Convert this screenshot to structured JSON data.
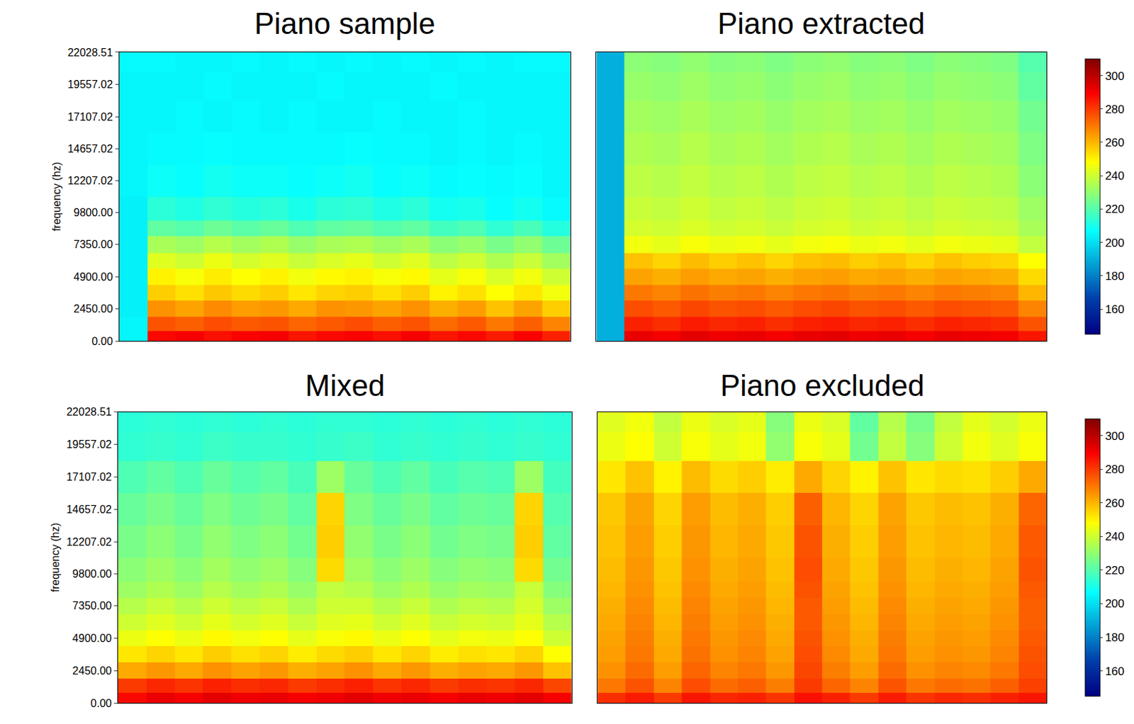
{
  "chart_data": [
    {
      "type": "heatmap",
      "title": "Piano sample",
      "y_label": "frequency (hz)",
      "tick_labels": "y",
      "y": [
        300,
        1200,
        2450,
        3700,
        4900,
        6100,
        7350,
        8600,
        9800,
        12207,
        14657,
        17107,
        19557,
        21500
      ],
      "ylim": [
        0,
        22028.51
      ],
      "yticks": [
        {
          "value": 0,
          "label": "0.00"
        },
        {
          "value": 2450,
          "label": "2450.00"
        },
        {
          "value": 4900,
          "label": "4900.00"
        },
        {
          "value": 7350,
          "label": "7350.00"
        },
        {
          "value": 9800,
          "label": "9800.00"
        },
        {
          "value": 12207.02,
          "label": "12207.02"
        },
        {
          "value": 14657.02,
          "label": "14657.02"
        },
        {
          "value": 17107.02,
          "label": "17107.02"
        },
        {
          "value": 19557.02,
          "label": "19557.02"
        },
        {
          "value": 22028.51,
          "label": "22028.51"
        }
      ],
      "zlim": [
        145,
        310
      ],
      "cells": [
        [
          205,
          288,
          290,
          287,
          289,
          290,
          286,
          288,
          289,
          287,
          290,
          286,
          288,
          285,
          289,
          284
        ],
        [
          205,
          276,
          274,
          277,
          275,
          276,
          273,
          275,
          277,
          274,
          276,
          272,
          275,
          270,
          274,
          268
        ],
        [
          204,
          266,
          263,
          267,
          264,
          265,
          262,
          266,
          265,
          263,
          266,
          261,
          264,
          258,
          263,
          256
        ],
        [
          204,
          256,
          253,
          257,
          254,
          256,
          252,
          255,
          256,
          253,
          256,
          250,
          253,
          248,
          252,
          246
        ],
        [
          204,
          250,
          247,
          251,
          248,
          250,
          246,
          249,
          250,
          247,
          249,
          244,
          247,
          242,
          246,
          240
        ],
        [
          204,
          243,
          240,
          245,
          241,
          243,
          239,
          242,
          244,
          240,
          243,
          237,
          240,
          235,
          239,
          233
        ],
        [
          204,
          234,
          232,
          236,
          233,
          235,
          231,
          234,
          235,
          232,
          234,
          229,
          231,
          226,
          230,
          224
        ],
        [
          204,
          222,
          220,
          224,
          221,
          223,
          219,
          222,
          223,
          220,
          222,
          217,
          219,
          214,
          218,
          212
        ],
        [
          204,
          213,
          211,
          214,
          212,
          213,
          210,
          213,
          214,
          211,
          213,
          209,
          210,
          207,
          209,
          206
        ],
        [
          205,
          208,
          207,
          209,
          208,
          208,
          207,
          208,
          209,
          207,
          208,
          206,
          207,
          206,
          207,
          205
        ],
        [
          205,
          206,
          206,
          207,
          206,
          206,
          206,
          206,
          207,
          206,
          206,
          205,
          206,
          205,
          206,
          205
        ],
        [
          205,
          205,
          206,
          205,
          206,
          205,
          206,
          205,
          205,
          206,
          205,
          205,
          206,
          205,
          205,
          205
        ],
        [
          205,
          205,
          205,
          206,
          205,
          205,
          205,
          206,
          205,
          205,
          205,
          206,
          205,
          205,
          205,
          205
        ],
        [
          206,
          206,
          205,
          205,
          206,
          205,
          206,
          205,
          206,
          205,
          206,
          205,
          206,
          205,
          206,
          206
        ]
      ]
    },
    {
      "type": "heatmap",
      "title": "Piano extracted",
      "tick_labels": false,
      "y": [
        300,
        1200,
        2450,
        3700,
        4900,
        6100,
        7350,
        8600,
        9800,
        12207,
        14657,
        17107,
        19557,
        21500
      ],
      "ylim": [
        0,
        22028.51
      ],
      "zlim": [
        145,
        310
      ],
      "zticks": [
        160,
        180,
        200,
        220,
        240,
        260,
        280,
        300
      ],
      "cells": [
        [
          190,
          292,
          290,
          293,
          291,
          292,
          290,
          292,
          293,
          291,
          292,
          290,
          292,
          291,
          290,
          286
        ],
        [
          190,
          284,
          282,
          285,
          283,
          284,
          282,
          284,
          285,
          283,
          284,
          282,
          284,
          283,
          282,
          276
        ],
        [
          190,
          277,
          275,
          278,
          276,
          277,
          275,
          277,
          278,
          276,
          277,
          275,
          277,
          276,
          275,
          268
        ],
        [
          190,
          270,
          268,
          271,
          269,
          270,
          268,
          270,
          271,
          269,
          270,
          268,
          270,
          269,
          268,
          260
        ],
        [
          190,
          263,
          261,
          264,
          262,
          263,
          261,
          263,
          264,
          262,
          263,
          261,
          263,
          262,
          261,
          254
        ],
        [
          190,
          258,
          255,
          259,
          256,
          258,
          255,
          258,
          259,
          256,
          258,
          255,
          258,
          256,
          255,
          248
        ],
        [
          190,
          246,
          244,
          247,
          245,
          246,
          244,
          246,
          247,
          245,
          246,
          244,
          246,
          245,
          244,
          238
        ],
        [
          190,
          241,
          240,
          242,
          240,
          241,
          239,
          241,
          242,
          240,
          241,
          239,
          241,
          240,
          239,
          234
        ],
        [
          190,
          239,
          238,
          240,
          238,
          239,
          237,
          239,
          240,
          238,
          239,
          237,
          239,
          238,
          237,
          232
        ],
        [
          190,
          237,
          236,
          238,
          236,
          237,
          235,
          237,
          238,
          236,
          237,
          235,
          237,
          236,
          235,
          229
        ],
        [
          190,
          235,
          234,
          236,
          234,
          235,
          233,
          235,
          236,
          234,
          235,
          233,
          235,
          234,
          233,
          227
        ],
        [
          190,
          233,
          232,
          234,
          232,
          233,
          231,
          233,
          234,
          232,
          233,
          231,
          233,
          232,
          231,
          225
        ],
        [
          190,
          231,
          230,
          232,
          230,
          231,
          229,
          231,
          232,
          230,
          231,
          229,
          231,
          230,
          229,
          222
        ],
        [
          190,
          229,
          228,
          230,
          228,
          229,
          227,
          229,
          230,
          228,
          229,
          227,
          229,
          228,
          227,
          220
        ]
      ]
    },
    {
      "type": "heatmap",
      "title": "Mixed",
      "y_label": "frequency (hz)",
      "tick_labels": "y",
      "y": [
        300,
        1200,
        2450,
        3700,
        4900,
        6100,
        7350,
        8600,
        9800,
        12207,
        14657,
        17107,
        19557,
        21500
      ],
      "ylim": [
        0,
        22028.51
      ],
      "yticks": [
        {
          "value": 0,
          "label": "0.00"
        },
        {
          "value": 2450,
          "label": "2450.00"
        },
        {
          "value": 4900,
          "label": "4900.00"
        },
        {
          "value": 7350,
          "label": "7350.00"
        },
        {
          "value": 9800,
          "label": "9800.00"
        },
        {
          "value": 12207.02,
          "label": "12207.02"
        },
        {
          "value": 14657.02,
          "label": "14657.02"
        },
        {
          "value": 17107.02,
          "label": "17107.02"
        },
        {
          "value": 19557.02,
          "label": "19557.02"
        },
        {
          "value": 22028.51,
          "label": "22028.51"
        }
      ],
      "zlim": [
        145,
        310
      ],
      "cells": [
        [
          288,
          292,
          290,
          293,
          291,
          292,
          290,
          291,
          293,
          291,
          292,
          290,
          292,
          291,
          293,
          290
        ],
        [
          280,
          283,
          281,
          284,
          282,
          283,
          280,
          282,
          284,
          281,
          283,
          280,
          282,
          281,
          283,
          278
        ],
        [
          262,
          265,
          262,
          266,
          263,
          265,
          261,
          263,
          266,
          262,
          265,
          261,
          263,
          262,
          265,
          258
        ],
        [
          252,
          255,
          252,
          256,
          253,
          255,
          251,
          254,
          256,
          252,
          255,
          251,
          253,
          252,
          255,
          248
        ],
        [
          245,
          248,
          245,
          249,
          246,
          248,
          244,
          247,
          249,
          245,
          248,
          244,
          246,
          245,
          248,
          240
        ],
        [
          240,
          243,
          240,
          244,
          241,
          243,
          239,
          243,
          244,
          240,
          243,
          239,
          241,
          240,
          244,
          236
        ],
        [
          236,
          239,
          236,
          240,
          237,
          239,
          235,
          240,
          240,
          236,
          239,
          235,
          237,
          236,
          241,
          232
        ],
        [
          232,
          235,
          232,
          236,
          233,
          235,
          231,
          238,
          236,
          232,
          235,
          231,
          233,
          232,
          239,
          228
        ],
        [
          229,
          232,
          229,
          233,
          230,
          232,
          228,
          254,
          233,
          229,
          232,
          228,
          230,
          229,
          254,
          225
        ],
        [
          226,
          229,
          226,
          230,
          227,
          229,
          225,
          256,
          230,
          226,
          229,
          225,
          227,
          226,
          256,
          222
        ],
        [
          223,
          226,
          223,
          227,
          224,
          226,
          222,
          255,
          227,
          223,
          226,
          222,
          224,
          223,
          255,
          220
        ],
        [
          219,
          222,
          219,
          223,
          220,
          222,
          218,
          232,
          223,
          219,
          222,
          218,
          220,
          219,
          232,
          217
        ],
        [
          214,
          215,
          214,
          216,
          215,
          215,
          214,
          215,
          216,
          214,
          215,
          214,
          215,
          214,
          215,
          214
        ],
        [
          213,
          214,
          213,
          214,
          213,
          214,
          213,
          214,
          214,
          213,
          214,
          213,
          214,
          213,
          214,
          213
        ]
      ]
    },
    {
      "type": "heatmap",
      "title": "Piano excluded",
      "tick_labels": false,
      "y": [
        300,
        1200,
        2450,
        3700,
        4900,
        6100,
        7350,
        8600,
        9800,
        12207,
        14657,
        17107,
        19557,
        21500
      ],
      "ylim": [
        0,
        22028.51
      ],
      "zlim": [
        145,
        310
      ],
      "zticks": [
        160,
        180,
        200,
        220,
        240,
        260,
        280,
        300
      ],
      "cells": [
        [
          282,
          285,
          280,
          286,
          283,
          284,
          281,
          287,
          284,
          280,
          285,
          281,
          283,
          282,
          284,
          286
        ],
        [
          270,
          276,
          268,
          277,
          272,
          274,
          269,
          280,
          273,
          268,
          276,
          270,
          272,
          271,
          274,
          279
        ],
        [
          266,
          272,
          264,
          273,
          268,
          270,
          265,
          278,
          269,
          264,
          272,
          266,
          268,
          267,
          270,
          277
        ],
        [
          264,
          270,
          262,
          271,
          266,
          268,
          263,
          277,
          267,
          262,
          270,
          264,
          266,
          265,
          268,
          276
        ],
        [
          263,
          269,
          261,
          270,
          265,
          267,
          262,
          276,
          266,
          261,
          269,
          263,
          265,
          264,
          267,
          275
        ],
        [
          262,
          268,
          260,
          269,
          264,
          266,
          261,
          275,
          265,
          260,
          268,
          262,
          264,
          263,
          266,
          274
        ],
        [
          261,
          267,
          259,
          268,
          263,
          265,
          260,
          275,
          264,
          259,
          267,
          261,
          263,
          262,
          265,
          274
        ],
        [
          260,
          266,
          258,
          267,
          262,
          264,
          259,
          276,
          263,
          258,
          266,
          260,
          262,
          261,
          264,
          275
        ],
        [
          259,
          265,
          257,
          266,
          261,
          263,
          258,
          277,
          262,
          257,
          265,
          259,
          261,
          260,
          263,
          276
        ],
        [
          258,
          264,
          256,
          265,
          260,
          262,
          257,
          276,
          261,
          256,
          264,
          258,
          260,
          259,
          262,
          275
        ],
        [
          257,
          263,
          255,
          264,
          259,
          261,
          256,
          274,
          260,
          255,
          263,
          257,
          259,
          258,
          261,
          273
        ],
        [
          252,
          258,
          250,
          259,
          254,
          256,
          251,
          262,
          255,
          250,
          258,
          252,
          254,
          253,
          256,
          262
        ],
        [
          245,
          248,
          240,
          247,
          244,
          246,
          230,
          247,
          244,
          225,
          238,
          228,
          240,
          246,
          243,
          247
        ],
        [
          243,
          246,
          238,
          245,
          242,
          244,
          228,
          245,
          242,
          222,
          236,
          226,
          238,
          244,
          241,
          245
        ]
      ]
    }
  ]
}
